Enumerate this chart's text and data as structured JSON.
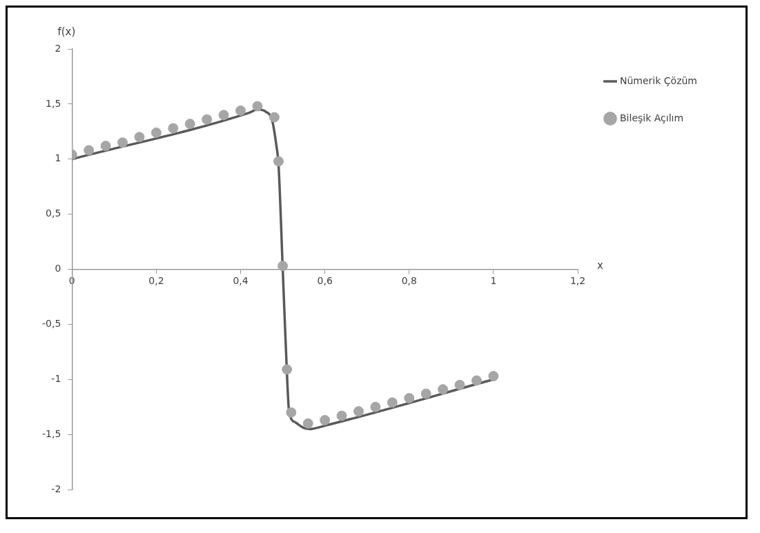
{
  "chart_data": {
    "type": "line",
    "xlabel": "x",
    "ylabel": "f(x)",
    "xlim": [
      0,
      1.2
    ],
    "ylim": [
      -2,
      2
    ],
    "xticks": [
      0,
      {
        "value": 0.2,
        "label": "0,2"
      },
      {
        "value": 0.4,
        "label": "0,4"
      },
      {
        "value": 0.6,
        "label": "0,6"
      },
      {
        "value": 0.8,
        "label": "0,8"
      },
      1,
      {
        "value": 1.2,
        "label": "1,2"
      }
    ],
    "yticks": [
      -2,
      {
        "value": -1.5,
        "label": "-1,5"
      },
      -1,
      {
        "value": -0.5,
        "label": "-0,5"
      },
      0,
      {
        "value": 0.5,
        "label": "0,5"
      },
      1,
      {
        "value": 1.5,
        "label": "1,5"
      },
      2
    ],
    "grid": false,
    "legend": "top right",
    "series": [
      {
        "name": "Nümerik Çözüm",
        "type": "line",
        "color": "#595959",
        "marker": "none",
        "line_style": "solid",
        "x": [
          0,
          0.42,
          0.44,
          0.46,
          0.475,
          0.485,
          0.49,
          0.5,
          0.51,
          0.515,
          0.53,
          0.55,
          0.565,
          0.6,
          1.0
        ],
        "values": [
          1.0,
          1.42,
          1.45,
          1.43,
          1.35,
          1.12,
          0.95,
          0.0,
          -0.95,
          -1.29,
          -1.39,
          -1.44,
          -1.45,
          -1.42,
          -1.0
        ]
      },
      {
        "name": "Bileşik Açılım",
        "type": "scatter",
        "color": "#a6a6a6",
        "marker": "circle",
        "x": [
          0,
          0.04,
          0.08,
          0.12,
          0.16,
          0.2,
          0.24,
          0.28,
          0.32,
          0.36,
          0.4,
          0.44,
          0.48,
          0.49,
          0.5,
          0.51,
          0.52,
          0.56,
          0.6,
          0.64,
          0.68,
          0.72,
          0.76,
          0.8,
          0.84,
          0.88,
          0.92,
          0.96,
          1.0
        ],
        "values": [
          1.04,
          1.08,
          1.12,
          1.15,
          1.2,
          1.24,
          1.28,
          1.32,
          1.36,
          1.4,
          1.44,
          1.48,
          1.38,
          0.98,
          0.03,
          -0.91,
          -1.3,
          -1.4,
          -1.37,
          -1.33,
          -1.29,
          -1.25,
          -1.21,
          -1.17,
          -1.13,
          -1.09,
          -1.05,
          -1.01,
          -0.97
        ]
      }
    ]
  }
}
